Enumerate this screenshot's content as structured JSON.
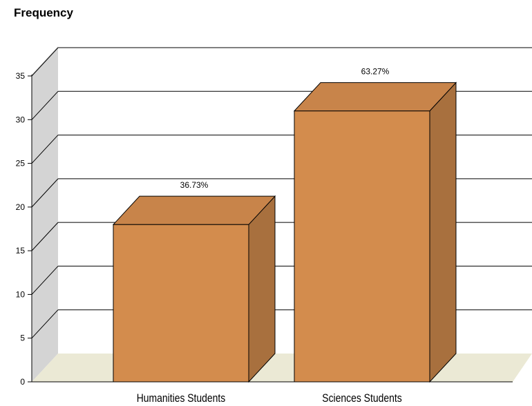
{
  "chart_data": {
    "type": "bar",
    "style": "3d",
    "ylabel": "Frequency",
    "xlabel": "",
    "ylim": [
      0,
      35
    ],
    "yticks": [
      0,
      5,
      10,
      15,
      20,
      25,
      30,
      35
    ],
    "grid": true,
    "categories": [
      "Humanities Students",
      "Sciences Students"
    ],
    "values": [
      18,
      31
    ],
    "data_labels": [
      "36.73%",
      "63.27%"
    ],
    "colors": {
      "bar_front": "#d38c4d",
      "bar_top": "#c8844a",
      "bar_side": "#a8703e",
      "back_wall": "#d4d4d4",
      "floor": "#ebe9d5"
    }
  }
}
